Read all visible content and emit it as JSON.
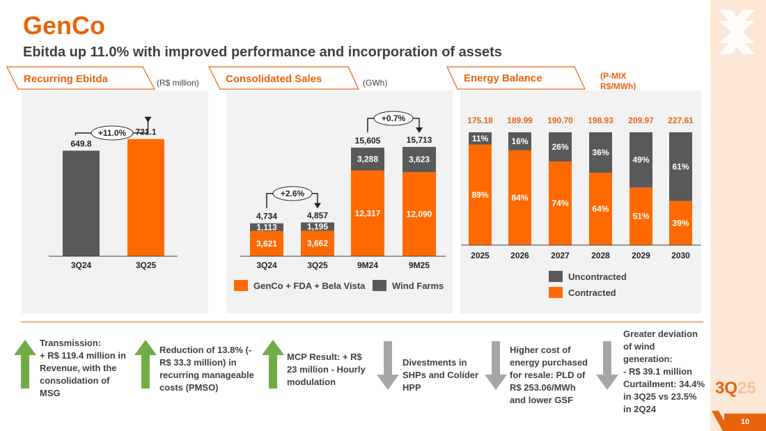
{
  "header": {
    "title": "GenCo",
    "subtitle": "Ebitda up 11.0% with improved performance and incorporation of assets"
  },
  "badge": {
    "quarter_main": "3Q",
    "quarter_year": "25",
    "page": "10"
  },
  "colors": {
    "orange": "#ff6a00",
    "dark": "#595959",
    "accent": "#e8640c",
    "green": "#70ad47",
    "gray_arrow": "#a6a6a6"
  },
  "chart_data": [
    {
      "type": "bar",
      "title": "Recurring Ebitda",
      "unit": "(R$ million)",
      "categories": [
        "3Q24",
        "3Q25"
      ],
      "values": [
        649.8,
        721.1
      ],
      "value_labels": [
        "649.8",
        "721.1"
      ],
      "ylim": [
        0,
        900
      ],
      "growth_label": "+11.0%"
    },
    {
      "type": "bar",
      "title": "Consolidated Sales",
      "unit": "(GWh)",
      "categories": [
        "3Q24",
        "3Q25",
        "9M24",
        "9M25"
      ],
      "ylim": [
        0,
        18000
      ],
      "series": [
        {
          "name": "GenCo + FDA + Bela Vista",
          "values": [
            3621,
            3662,
            12317,
            12090
          ],
          "labels": [
            "3,621",
            "3,662",
            "12,317",
            "12,090"
          ]
        },
        {
          "name": "Wind Farms",
          "values": [
            1113,
            1195,
            3288,
            3623
          ],
          "labels": [
            "1,113",
            "1,195",
            "3,288",
            "3,623"
          ]
        }
      ],
      "totals": [
        "4,734",
        "4,857",
        "15,605",
        "15,713"
      ],
      "growth_labels": [
        "+2.6%",
        "+0.7%"
      ]
    },
    {
      "type": "bar",
      "title": "Energy Balance",
      "unit_line1": "(P-MIX",
      "unit_line2": "R$/MWh)",
      "categories": [
        "2025",
        "2026",
        "2027",
        "2028",
        "2029",
        "2030"
      ],
      "prices": [
        "175.18",
        "189.99",
        "190.70",
        "198.93",
        "209.97",
        "227.61"
      ],
      "series": [
        {
          "name": "Contracted",
          "values": [
            89,
            84,
            74,
            64,
            51,
            39
          ],
          "labels": [
            "89%",
            "84%",
            "74%",
            "64%",
            "51%",
            "39%"
          ]
        },
        {
          "name": "Uncontracted",
          "values": [
            11,
            16,
            26,
            36,
            49,
            61
          ],
          "labels": [
            "11%",
            "16%",
            "26%",
            "36%",
            "49%",
            "61%"
          ]
        }
      ],
      "ylim": [
        0,
        100
      ]
    }
  ],
  "highlights": [
    {
      "direction": "up",
      "lines": [
        "Transmission:",
        "+ R$ 119.4 million in",
        "Revenue, with the",
        "consolidation of",
        "MSG"
      ]
    },
    {
      "direction": "up",
      "lines": [
        "Reduction of 13.8% (-",
        "R$ 33.3 million) in",
        "recurring manageable",
        "costs (PMSO)"
      ]
    },
    {
      "direction": "up",
      "lines": [
        "MCP Result: + R$",
        "23 million - Hourly",
        "modulation"
      ]
    },
    {
      "direction": "down",
      "lines": [
        "Divestments in",
        "SHPs and Colíder",
        "HPP"
      ]
    },
    {
      "direction": "down",
      "lines": [
        "Higher cost of",
        "energy purchased",
        "for resale: PLD of",
        "R$ 253.06/MWh",
        "and lower GSF"
      ]
    },
    {
      "direction": "down",
      "lines": [
        "Greater deviation",
        "of wind",
        "generation:",
        "- R$ 39.1 million",
        "Curtailment: 34.4%",
        "in 3Q25 vs 23.5%",
        "in 2Q24"
      ]
    }
  ]
}
